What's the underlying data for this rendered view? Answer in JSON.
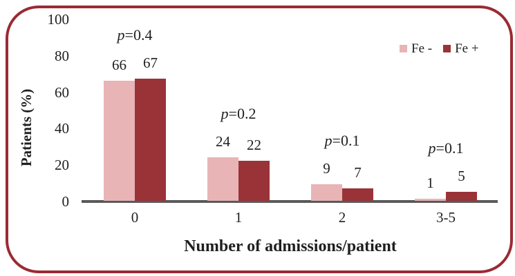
{
  "frame": {
    "border_color": "#9a2b33"
  },
  "chart_data": {
    "type": "bar",
    "title": "",
    "xlabel": "Number of admissions/patient",
    "ylabel": "Patients (%)",
    "categories": [
      "0",
      "1",
      "2",
      "3-5"
    ],
    "series": [
      {
        "name": "Fe -",
        "color": "#e8b4b6",
        "values": [
          66,
          24,
          9,
          1
        ]
      },
      {
        "name": "Fe +",
        "color": "#9a3338",
        "values": [
          67,
          22,
          7,
          5
        ]
      }
    ],
    "annotations": [
      "p=0.4",
      "p=0.2",
      "p=0.1",
      "p=0.1"
    ],
    "y_ticks": [
      0,
      20,
      40,
      60,
      80,
      100
    ],
    "ylim": [
      0,
      100
    ],
    "grid": false,
    "value_labels_shown": true,
    "legend_position": "top-right",
    "axis_line_color": "#595959",
    "text_color": "#1f1f1f"
  }
}
